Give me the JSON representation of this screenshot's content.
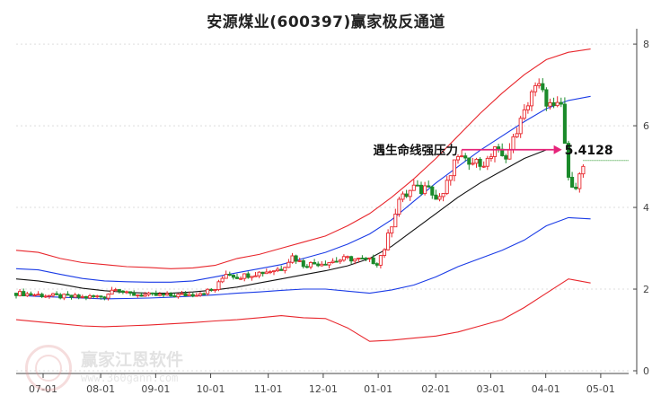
{
  "title": "安源煤业(600397)赢家极反通道",
  "watermark": {
    "name": "赢家江恩软件",
    "url": "www.360gann.com"
  },
  "colors": {
    "up": "#e8262c",
    "down": "#1a8a2a",
    "upper_band": "#e8262c",
    "mid_band": "#1a3be6",
    "center_line": "#111111",
    "lower_band": "#1a3be6",
    "bottom_band": "#e8262c",
    "annotation": "#e6247a",
    "level_line": "#2a9a2a"
  },
  "chart_data": {
    "type": "candlestick",
    "title": "安源煤业(600397)赢家极反通道",
    "x_ticks": [
      "07-01",
      "08-01",
      "09-01",
      "10-01",
      "11-01",
      "12-01",
      "01-01",
      "02-01",
      "03-01",
      "04-01",
      "05-01"
    ],
    "y_ticks": [
      "0",
      "2",
      "4",
      "6",
      "8"
    ],
    "ylim": [
      0,
      8.2
    ],
    "annotation": {
      "label": "遇生命线强压力",
      "value": "5.4128",
      "level": 5.4128
    },
    "bands": {
      "upper": [
        [
          0,
          2.95
        ],
        [
          6,
          2.9
        ],
        [
          12,
          2.75
        ],
        [
          18,
          2.65
        ],
        [
          24,
          2.6
        ],
        [
          30,
          2.55
        ],
        [
          36,
          2.53
        ],
        [
          42,
          2.5
        ],
        [
          48,
          2.52
        ],
        [
          54,
          2.58
        ],
        [
          60,
          2.75
        ],
        [
          66,
          2.85
        ],
        [
          72,
          3.0
        ],
        [
          78,
          3.15
        ],
        [
          84,
          3.3
        ],
        [
          90,
          3.55
        ],
        [
          96,
          3.85
        ],
        [
          102,
          4.25
        ],
        [
          108,
          4.7
        ],
        [
          114,
          5.2
        ],
        [
          120,
          5.75
        ],
        [
          126,
          6.3
        ],
        [
          132,
          6.8
        ],
        [
          138,
          7.25
        ],
        [
          144,
          7.62
        ],
        [
          150,
          7.8
        ],
        [
          156,
          7.88
        ]
      ],
      "mid": [
        [
          0,
          2.5
        ],
        [
          6,
          2.47
        ],
        [
          12,
          2.36
        ],
        [
          18,
          2.26
        ],
        [
          24,
          2.2
        ],
        [
          30,
          2.18
        ],
        [
          36,
          2.17
        ],
        [
          42,
          2.17
        ],
        [
          48,
          2.2
        ],
        [
          54,
          2.3
        ],
        [
          60,
          2.4
        ],
        [
          66,
          2.5
        ],
        [
          72,
          2.6
        ],
        [
          78,
          2.75
        ],
        [
          84,
          2.9
        ],
        [
          90,
          3.1
        ],
        [
          96,
          3.35
        ],
        [
          102,
          3.7
        ],
        [
          108,
          4.15
        ],
        [
          114,
          4.6
        ],
        [
          120,
          5.0
        ],
        [
          126,
          5.4
        ],
        [
          132,
          5.75
        ],
        [
          138,
          6.1
        ],
        [
          144,
          6.42
        ],
        [
          150,
          6.62
        ],
        [
          156,
          6.72
        ]
      ],
      "center": [
        [
          0,
          2.25
        ],
        [
          6,
          2.2
        ],
        [
          12,
          2.12
        ],
        [
          18,
          2.02
        ],
        [
          24,
          1.96
        ],
        [
          30,
          1.92
        ],
        [
          36,
          1.9
        ],
        [
          42,
          1.9
        ],
        [
          48,
          1.93
        ],
        [
          54,
          1.98
        ],
        [
          60,
          2.05
        ],
        [
          66,
          2.15
        ],
        [
          72,
          2.25
        ],
        [
          78,
          2.35
        ],
        [
          84,
          2.45
        ],
        [
          90,
          2.57
        ],
        [
          96,
          2.75
        ],
        [
          102,
          3.05
        ],
        [
          108,
          3.45
        ],
        [
          114,
          3.85
        ],
        [
          120,
          4.25
        ],
        [
          126,
          4.6
        ],
        [
          132,
          4.9
        ],
        [
          138,
          5.2
        ],
        [
          144,
          5.41
        ]
      ],
      "lower": [
        [
          0,
          1.85
        ],
        [
          6,
          1.82
        ],
        [
          12,
          1.8
        ],
        [
          18,
          1.78
        ],
        [
          24,
          1.76
        ],
        [
          30,
          1.77
        ],
        [
          36,
          1.78
        ],
        [
          42,
          1.8
        ],
        [
          48,
          1.83
        ],
        [
          54,
          1.86
        ],
        [
          60,
          1.9
        ],
        [
          66,
          1.93
        ],
        [
          72,
          1.97
        ],
        [
          78,
          2.0
        ],
        [
          84,
          2.0
        ],
        [
          90,
          1.95
        ],
        [
          96,
          1.9
        ],
        [
          102,
          1.98
        ],
        [
          108,
          2.1
        ],
        [
          114,
          2.3
        ],
        [
          120,
          2.55
        ],
        [
          126,
          2.75
        ],
        [
          132,
          2.95
        ],
        [
          138,
          3.2
        ],
        [
          144,
          3.55
        ],
        [
          150,
          3.75
        ],
        [
          156,
          3.72
        ]
      ],
      "bottom": [
        [
          0,
          1.25
        ],
        [
          6,
          1.2
        ],
        [
          12,
          1.15
        ],
        [
          18,
          1.1
        ],
        [
          24,
          1.08
        ],
        [
          30,
          1.1
        ],
        [
          36,
          1.12
        ],
        [
          42,
          1.15
        ],
        [
          48,
          1.18
        ],
        [
          54,
          1.22
        ],
        [
          60,
          1.25
        ],
        [
          66,
          1.3
        ],
        [
          72,
          1.35
        ],
        [
          78,
          1.3
        ],
        [
          84,
          1.28
        ],
        [
          90,
          1.05
        ],
        [
          96,
          0.72
        ],
        [
          102,
          0.75
        ],
        [
          108,
          0.8
        ],
        [
          114,
          0.85
        ],
        [
          120,
          0.95
        ],
        [
          126,
          1.1
        ],
        [
          132,
          1.25
        ],
        [
          138,
          1.55
        ],
        [
          144,
          1.9
        ],
        [
          150,
          2.25
        ],
        [
          156,
          2.15
        ]
      ]
    },
    "closes": [
      [
        0,
        1.9
      ],
      [
        6,
        1.86
      ],
      [
        12,
        1.82
      ],
      [
        18,
        1.8
      ],
      [
        24,
        1.82
      ],
      [
        27,
        2.05
      ],
      [
        30,
        1.88
      ],
      [
        36,
        1.85
      ],
      [
        42,
        1.84
      ],
      [
        48,
        1.87
      ],
      [
        54,
        2.0
      ],
      [
        57,
        2.4
      ],
      [
        60,
        2.3
      ],
      [
        66,
        2.4
      ],
      [
        72,
        2.5
      ],
      [
        75,
        2.8
      ],
      [
        78,
        2.6
      ],
      [
        84,
        2.65
      ],
      [
        90,
        2.75
      ],
      [
        96,
        2.7
      ],
      [
        98,
        2.65
      ],
      [
        100,
        3.0
      ],
      [
        102,
        3.6
      ],
      [
        104,
        4.2
      ],
      [
        106,
        4.3
      ],
      [
        108,
        4.5
      ],
      [
        110,
        4.4
      ],
      [
        112,
        4.6
      ],
      [
        114,
        4.2
      ],
      [
        116,
        4.35
      ],
      [
        118,
        4.8
      ],
      [
        120,
        5.3
      ],
      [
        122,
        5.1
      ],
      [
        124,
        5.2
      ],
      [
        126,
        5.05
      ],
      [
        128,
        5.1
      ],
      [
        130,
        5.5
      ],
      [
        132,
        5.2
      ],
      [
        134,
        5.4
      ],
      [
        136,
        5.9
      ],
      [
        138,
        6.3
      ],
      [
        140,
        6.85
      ],
      [
        142,
        6.95
      ],
      [
        144,
        6.6
      ],
      [
        146,
        6.4
      ],
      [
        148,
        6.5
      ],
      [
        150,
        4.65
      ],
      [
        152,
        4.55
      ],
      [
        154,
        5.0
      ]
    ]
  }
}
